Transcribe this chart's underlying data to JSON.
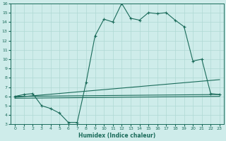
{
  "xlabel": "Humidex (Indice chaleur)",
  "bg_color": "#ceecea",
  "line_color": "#1a6b5a",
  "grid_color": "#afd8d4",
  "xlim": [
    -0.5,
    23.5
  ],
  "ylim": [
    3,
    16
  ],
  "xticks": [
    0,
    1,
    2,
    3,
    4,
    5,
    6,
    7,
    8,
    9,
    10,
    11,
    12,
    13,
    14,
    15,
    16,
    17,
    18,
    19,
    20,
    21,
    22,
    23
  ],
  "yticks": [
    3,
    4,
    5,
    6,
    7,
    8,
    9,
    10,
    11,
    12,
    13,
    14,
    15,
    16
  ],
  "curve1_x": [
    0,
    1,
    2,
    3,
    4,
    5,
    6,
    7,
    8,
    9,
    10,
    11,
    12,
    13,
    14,
    15,
    16,
    17,
    18,
    19,
    20,
    21,
    22,
    23
  ],
  "curve1_y": [
    6.0,
    6.2,
    6.3,
    5.0,
    4.7,
    4.2,
    3.2,
    3.2,
    7.5,
    12.5,
    14.3,
    14.0,
    16.0,
    14.4,
    14.2,
    15.0,
    14.9,
    15.0,
    14.2,
    13.5,
    9.8,
    10.0,
    6.3,
    6.2
  ],
  "line1_x": [
    0,
    23
  ],
  "line1_y": [
    6.0,
    6.2
  ],
  "line2_x": [
    0,
    23
  ],
  "line2_y": [
    5.9,
    7.8
  ],
  "line3_x": [
    0,
    23
  ],
  "line3_y": [
    5.8,
    6.0
  ]
}
